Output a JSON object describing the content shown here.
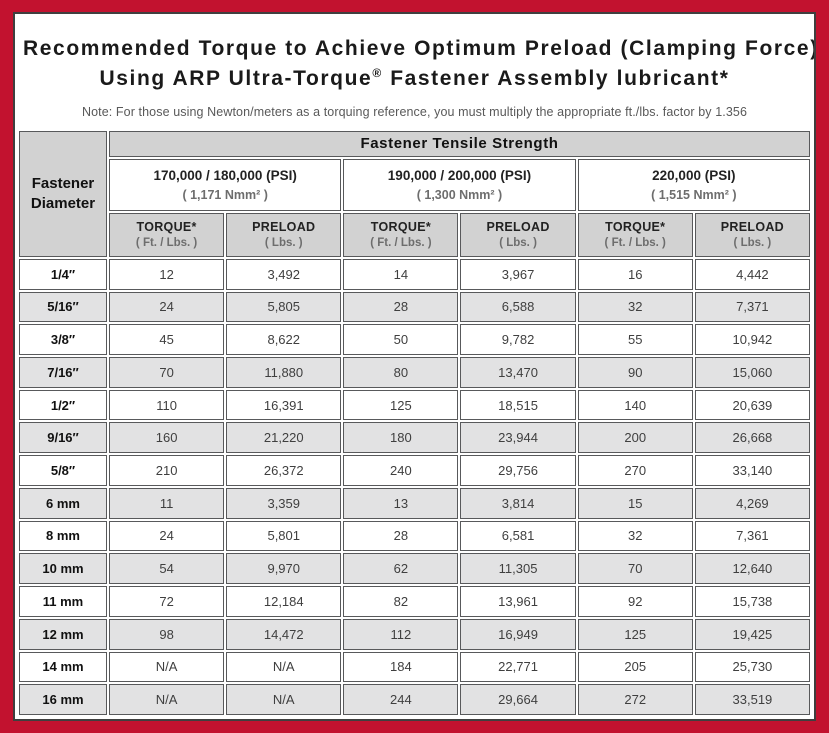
{
  "colors": {
    "frame_red": "#c2122f",
    "panel_border": "#3f3f3f",
    "cell_border": "#58595b",
    "header_gray": "#d2d2d2",
    "row_alt_gray": "#e2e2e3"
  },
  "header": {
    "title_line1": "Recommended Torque to Achieve Optimum Preload (Clamping Force)",
    "title_line2_prefix": "Using ARP Ultra-Torque",
    "title_line2_trademark": "®",
    "title_line2_suffix": " Fastener Assembly lubricant*",
    "note": "Note: For those using Newton/meters as a torquing reference, you must multiply the appropriate ft./lbs. factor by 1.356"
  },
  "table": {
    "corner_header_line1": "Fastener",
    "corner_header_line2": "Diameter",
    "tensile_strength_header": "Fastener Tensile Strength",
    "strength_groups": [
      {
        "psi": "170,000 / 180,000 (PSI)",
        "nmm": "( 1,171 Nmm² )"
      },
      {
        "psi": "190,000 / 200,000 (PSI)",
        "nmm": "( 1,300 Nmm² )"
      },
      {
        "psi": "220,000 (PSI)",
        "nmm": "( 1,515 Nmm² )"
      }
    ],
    "column_headers": {
      "torque": "TORQUE*",
      "torque_unit": "( Ft. / Lbs. )",
      "preload": "PRELOAD",
      "preload_unit": "( Lbs. )"
    },
    "rows": [
      {
        "diameter": "1/4″",
        "values": [
          "12",
          "3,492",
          "14",
          "3,967",
          "16",
          "4,442"
        ]
      },
      {
        "diameter": "5/16″",
        "values": [
          "24",
          "5,805",
          "28",
          "6,588",
          "32",
          "7,371"
        ]
      },
      {
        "diameter": "3/8″",
        "values": [
          "45",
          "8,622",
          "50",
          "9,782",
          "55",
          "10,942"
        ]
      },
      {
        "diameter": "7/16″",
        "values": [
          "70",
          "11,880",
          "80",
          "13,470",
          "90",
          "15,060"
        ]
      },
      {
        "diameter": "1/2″",
        "values": [
          "110",
          "16,391",
          "125",
          "18,515",
          "140",
          "20,639"
        ]
      },
      {
        "diameter": "9/16″",
        "values": [
          "160",
          "21,220",
          "180",
          "23,944",
          "200",
          "26,668"
        ]
      },
      {
        "diameter": "5/8″",
        "values": [
          "210",
          "26,372",
          "240",
          "29,756",
          "270",
          "33,140"
        ]
      },
      {
        "diameter": "6 mm",
        "values": [
          "11",
          "3,359",
          "13",
          "3,814",
          "15",
          "4,269"
        ]
      },
      {
        "diameter": "8 mm",
        "values": [
          "24",
          "5,801",
          "28",
          "6,581",
          "32",
          "7,361"
        ]
      },
      {
        "diameter": "10 mm",
        "values": [
          "54",
          "9,970",
          "62",
          "11,305",
          "70",
          "12,640"
        ]
      },
      {
        "diameter": "11 mm",
        "values": [
          "72",
          "12,184",
          "82",
          "13,961",
          "92",
          "15,738"
        ]
      },
      {
        "diameter": "12 mm",
        "values": [
          "98",
          "14,472",
          "112",
          "16,949",
          "125",
          "19,425"
        ]
      },
      {
        "diameter": "14 mm",
        "values": [
          "N/A",
          "N/A",
          "184",
          "22,771",
          "205",
          "25,730"
        ]
      },
      {
        "diameter": "16 mm",
        "values": [
          "N/A",
          "N/A",
          "244",
          "29,664",
          "272",
          "33,519"
        ]
      }
    ]
  }
}
